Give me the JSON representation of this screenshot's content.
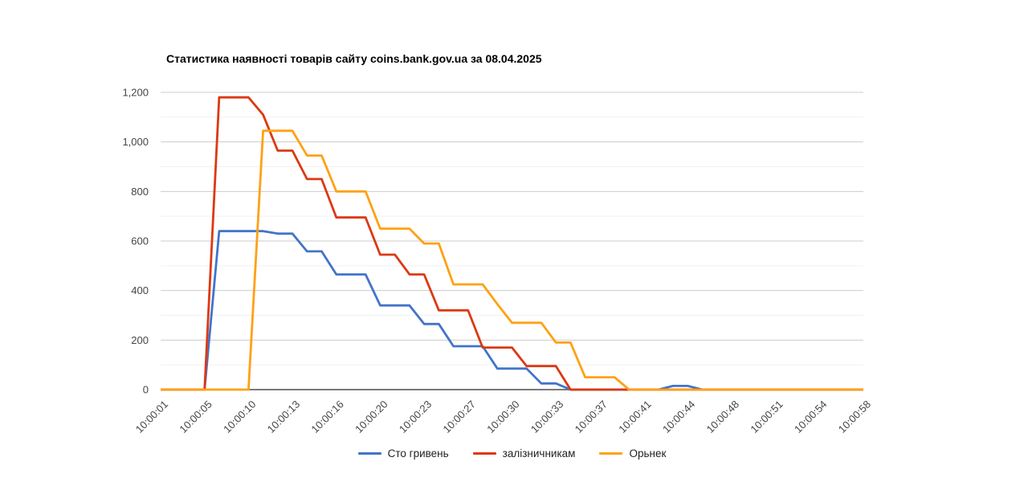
{
  "page": {
    "background": "#ffffff"
  },
  "chart": {
    "title": "Статистика наявності товарів сайту coins.bank.gov.ua за 08.04.2025"
  },
  "chart_data": {
    "type": "line",
    "title": "Статистика наявності товарів сайту coins.bank.gov.ua за 08.04.2025",
    "xlabel": "",
    "ylabel": "",
    "ylim": [
      0,
      1200
    ],
    "y_ticks": [
      0,
      200,
      400,
      600,
      800,
      1000,
      1200
    ],
    "y_tick_labels": [
      "0",
      "200",
      "400",
      "600",
      "800",
      "1,000",
      "1,200"
    ],
    "minor_y_ticks": [
      100,
      300,
      500,
      700,
      900,
      1100
    ],
    "grid": "horizontal major+minor",
    "legend_position": "bottom-center",
    "x_labels": [
      "10:00:01",
      "10:00:05",
      "10:00:10",
      "10:00:13",
      "10:00:16",
      "10:00:20",
      "10:00:23",
      "10:00:27",
      "10:00:30",
      "10:00:33",
      "10:00:37",
      "10:00:41",
      "10:00:44",
      "10:00:48",
      "10:00:51",
      "10:00:54",
      "10:00:58"
    ],
    "label_every_n_points": 3,
    "n_points": 49,
    "axis_colors": {
      "grid_major": "#cccccc",
      "grid_minor": "#f1f1f1",
      "baseline": "#7a7a7a",
      "tick_text": "#444444"
    },
    "series": [
      {
        "name": "Сто гривень",
        "color": "#4274c9",
        "values": [
          0,
          0,
          0,
          0,
          640,
          640,
          640,
          640,
          630,
          630,
          558,
          558,
          465,
          465,
          465,
          340,
          340,
          340,
          265,
          265,
          175,
          175,
          175,
          85,
          85,
          85,
          25,
          25,
          0,
          0,
          0,
          0,
          0,
          0,
          0,
          15,
          15,
          0,
          0,
          0,
          0,
          0,
          0,
          0,
          0,
          0,
          0,
          0,
          0
        ]
      },
      {
        "name": "залізничникам",
        "color": "#dc3912",
        "values": [
          0,
          0,
          0,
          0,
          1180,
          1180,
          1180,
          1110,
          965,
          965,
          850,
          850,
          695,
          695,
          695,
          545,
          545,
          465,
          465,
          320,
          320,
          320,
          170,
          170,
          170,
          95,
          95,
          95,
          0,
          0,
          0,
          0,
          0,
          0,
          0,
          0,
          0,
          0,
          0,
          0,
          0,
          0,
          0,
          0,
          0,
          0,
          0,
          0,
          0
        ]
      },
      {
        "name": "Орьнек",
        "color": "#ffa114",
        "values": [
          0,
          0,
          0,
          0,
          0,
          0,
          0,
          1045,
          1045,
          1045,
          945,
          945,
          800,
          800,
          800,
          650,
          650,
          650,
          590,
          590,
          425,
          425,
          425,
          345,
          270,
          270,
          270,
          190,
          190,
          50,
          50,
          50,
          0,
          0,
          0,
          0,
          0,
          0,
          0,
          0,
          0,
          0,
          0,
          0,
          0,
          0,
          0,
          0,
          0
        ]
      }
    ]
  }
}
